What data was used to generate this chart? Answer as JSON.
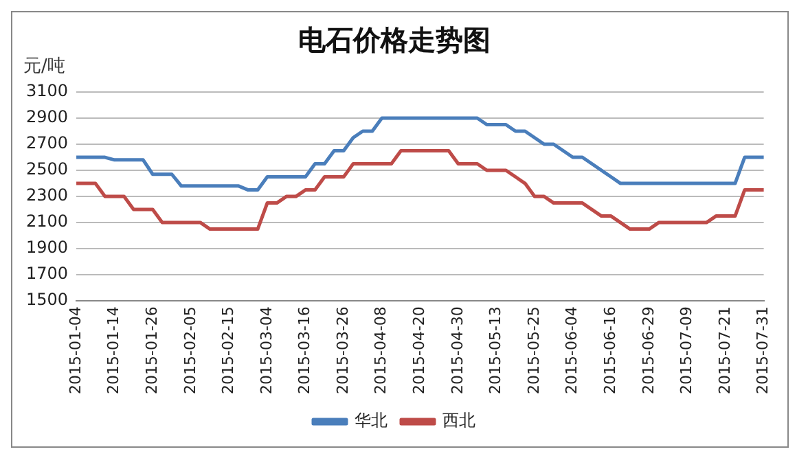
{
  "chart_data": {
    "type": "line",
    "title": "电石价格走势图",
    "ylabel": "元/吨",
    "categories": [
      "2015-01-04",
      null,
      null,
      null,
      "2015-01-14",
      null,
      null,
      null,
      "2015-01-26",
      null,
      null,
      null,
      "2015-02-05",
      null,
      null,
      null,
      "2015-02-15",
      null,
      null,
      null,
      "2015-03-04",
      null,
      null,
      null,
      "2015-03-16",
      null,
      null,
      null,
      "2015-03-26",
      null,
      null,
      null,
      "2015-04-08",
      null,
      null,
      null,
      "2015-04-20",
      null,
      null,
      null,
      "2015-04-30",
      null,
      null,
      null,
      "2015-05-13",
      null,
      null,
      null,
      "2015-05-25",
      null,
      null,
      null,
      "2015-06-04",
      null,
      null,
      null,
      "2015-06-16",
      null,
      null,
      null,
      "2015-06-29",
      null,
      null,
      null,
      "2015-07-09",
      null,
      null,
      null,
      "2015-07-21",
      null,
      null,
      null,
      "2015-07-31"
    ],
    "series": [
      {
        "name": "华北",
        "color": "#4a7ebb",
        "values": [
          2600,
          2600,
          2600,
          2600,
          2580,
          2580,
          2580,
          2580,
          2470,
          2470,
          2470,
          2380,
          2380,
          2380,
          2380,
          2380,
          2380,
          2380,
          2350,
          2350,
          2450,
          2450,
          2450,
          2450,
          2450,
          2550,
          2550,
          2650,
          2650,
          2750,
          2800,
          2800,
          2900,
          2900,
          2900,
          2900,
          2900,
          2900,
          2900,
          2900,
          2900,
          2900,
          2900,
          2850,
          2850,
          2850,
          2800,
          2800,
          2750,
          2700,
          2700,
          2650,
          2600,
          2600,
          2550,
          2500,
          2450,
          2400,
          2400,
          2400,
          2400,
          2400,
          2400,
          2400,
          2400,
          2400,
          2400,
          2400,
          2400,
          2400,
          2600,
          2600,
          2600
        ]
      },
      {
        "name": "西北",
        "color": "#be4b48",
        "values": [
          2400,
          2400,
          2400,
          2300,
          2300,
          2300,
          2200,
          2200,
          2200,
          2100,
          2100,
          2100,
          2100,
          2100,
          2050,
          2050,
          2050,
          2050,
          2050,
          2050,
          2250,
          2250,
          2300,
          2300,
          2350,
          2350,
          2450,
          2450,
          2450,
          2550,
          2550,
          2550,
          2550,
          2550,
          2650,
          2650,
          2650,
          2650,
          2650,
          2650,
          2550,
          2550,
          2550,
          2500,
          2500,
          2500,
          2450,
          2400,
          2300,
          2300,
          2250,
          2250,
          2250,
          2250,
          2200,
          2150,
          2150,
          2100,
          2050,
          2050,
          2050,
          2100,
          2100,
          2100,
          2100,
          2100,
          2100,
          2150,
          2150,
          2150,
          2350,
          2350,
          2350
        ]
      }
    ],
    "ylim": [
      1500,
      3100
    ],
    "yticks": [
      1500,
      1700,
      1900,
      2100,
      2300,
      2500,
      2700,
      2900,
      3100
    ],
    "grid": "y",
    "legend": "bottom",
    "marker": "none",
    "line_style": "solid"
  }
}
